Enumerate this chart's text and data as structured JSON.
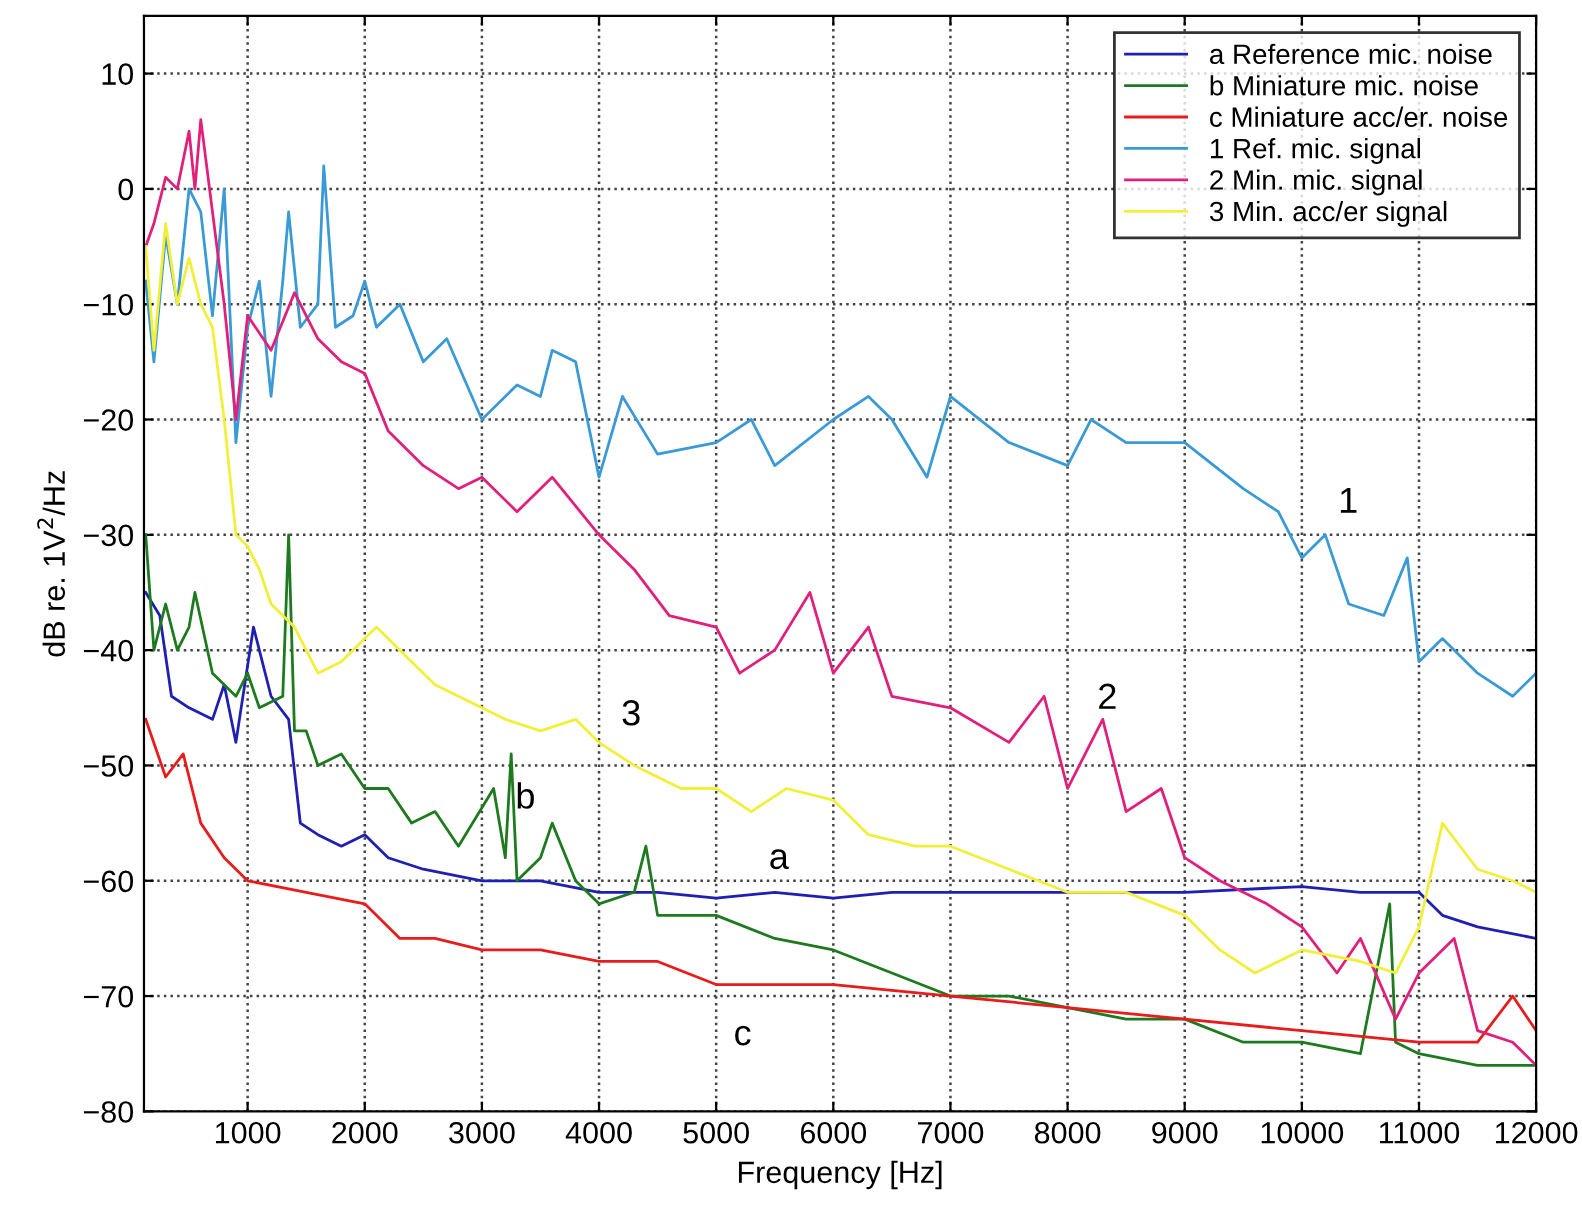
{
  "chart_data": {
    "type": "line",
    "xlabel": "Frequency [Hz]",
    "ylabel": "dB re. 1V$^{2}$/Hz",
    "xlim": [
      115,
      12000
    ],
    "ylim": [
      -80,
      15
    ],
    "xticks": [
      1000,
      2000,
      3000,
      4000,
      5000,
      6000,
      7000,
      8000,
      9000,
      10000,
      11000,
      12000
    ],
    "yticks": [
      -80,
      -70,
      -60,
      -50,
      -40,
      -30,
      -20,
      -10,
      0,
      10
    ],
    "grid": true,
    "legend": "top right",
    "marker": "none",
    "series": [
      {
        "name": "a Reference mic. noise",
        "color": "#1f1fb0",
        "x": [
          130,
          250,
          350,
          500,
          700,
          800,
          900,
          1050,
          1200,
          1350,
          1450,
          1600,
          1800,
          2000,
          2200,
          2500,
          3000,
          3500,
          4000,
          4500,
          5000,
          5500,
          6000,
          6500,
          7000,
          8000,
          9000,
          10000,
          10500,
          11000,
          11200,
          11500,
          12000
        ],
        "values": [
          -35,
          -37,
          -44,
          -45,
          -46,
          -43,
          -48,
          -38,
          -44,
          -46,
          -55,
          -56,
          -57,
          -56,
          -58,
          -59,
          -60,
          -60,
          -61,
          -61,
          -61.5,
          -61,
          -61.5,
          -61,
          -61,
          -61,
          -61,
          -60.5,
          -61,
          -61,
          -63,
          -64,
          -65
        ]
      },
      {
        "name": "b Miniature mic. noise",
        "color": "#1e7a1e",
        "x": [
          130,
          200,
          300,
          400,
          500,
          550,
          700,
          900,
          1000,
          1100,
          1300,
          1350,
          1400,
          1500,
          1600,
          1800,
          2000,
          2200,
          2400,
          2600,
          2800,
          3100,
          3200,
          3250,
          3300,
          3500,
          3600,
          3800,
          4000,
          4300,
          4400,
          4500,
          5000,
          5500,
          6000,
          6500,
          7000,
          7500,
          8000,
          8500,
          9000,
          9500,
          10000,
          10500,
          10750,
          10800,
          11000,
          11500,
          12000
        ],
        "values": [
          -30,
          -40,
          -36,
          -40,
          -38,
          -35,
          -42,
          -44,
          -42,
          -45,
          -44,
          -30,
          -47,
          -47,
          -50,
          -49,
          -52,
          -52,
          -55,
          -54,
          -57,
          -52,
          -58,
          -49,
          -60,
          -58,
          -55,
          -60,
          -62,
          -61,
          -57,
          -63,
          -63,
          -65,
          -66,
          -68,
          -70,
          -70,
          -71,
          -72,
          -72,
          -74,
          -74,
          -75,
          -62,
          -74,
          -75,
          -76,
          -76
        ]
      },
      {
        "name": "c Miniature acc/er. noise",
        "color": "#e81c1c",
        "x": [
          130,
          300,
          450,
          600,
          800,
          1000,
          1500,
          2000,
          2300,
          2600,
          3000,
          3500,
          4000,
          4500,
          5000,
          5500,
          6000,
          7000,
          8000,
          9000,
          10000,
          11000,
          11500,
          11800,
          12000
        ],
        "values": [
          -46,
          -51,
          -49,
          -55,
          -58,
          -60,
          -61,
          -62,
          -65,
          -65,
          -66,
          -66,
          -67,
          -67,
          -69,
          -69,
          -69,
          -70,
          -71,
          -72,
          -73,
          -74,
          -74,
          -70,
          -73
        ]
      },
      {
        "name": "1 Ref. mic. signal",
        "color": "#3a9ad6",
        "x": [
          130,
          200,
          300,
          400,
          500,
          600,
          700,
          800,
          900,
          1000,
          1100,
          1200,
          1300,
          1350,
          1450,
          1600,
          1650,
          1750,
          1900,
          2000,
          2100,
          2300,
          2500,
          2700,
          3000,
          3300,
          3500,
          3600,
          3800,
          4000,
          4200,
          4500,
          5000,
          5300,
          5500,
          6000,
          6300,
          6500,
          6800,
          7000,
          7500,
          8000,
          8200,
          8500,
          9000,
          9500,
          9800,
          10000,
          10200,
          10400,
          10700,
          10900,
          11000,
          11200,
          11500,
          11800,
          12000
        ],
        "values": [
          -8,
          -15,
          -4,
          -10,
          0,
          -2,
          -11,
          0,
          -22,
          -12,
          -8,
          -18,
          -8,
          -2,
          -12,
          -10,
          2,
          -12,
          -11,
          -8,
          -12,
          -10,
          -15,
          -13,
          -20,
          -17,
          -18,
          -14,
          -15,
          -25,
          -18,
          -23,
          -22,
          -20,
          -24,
          -20,
          -18,
          -20,
          -25,
          -18,
          -22,
          -24,
          -20,
          -22,
          -22,
          -26,
          -28,
          -32,
          -30,
          -36,
          -37,
          -32,
          -41,
          -39,
          -42,
          -44,
          -42
        ]
      },
      {
        "name": "2 Min. mic. signal",
        "color": "#e0207a",
        "x": [
          130,
          200,
          300,
          400,
          500,
          550,
          600,
          700,
          800,
          900,
          1000,
          1200,
          1400,
          1600,
          1800,
          2000,
          2200,
          2500,
          2800,
          3000,
          3300,
          3600,
          4000,
          4300,
          4600,
          5000,
          5200,
          5500,
          5800,
          6000,
          6300,
          6500,
          7000,
          7500,
          7800,
          8000,
          8300,
          8500,
          8800,
          9000,
          9300,
          9700,
          10000,
          10300,
          10500,
          10800,
          11000,
          11300,
          11500,
          11800,
          12000
        ],
        "values": [
          -5,
          -3,
          1,
          0,
          5,
          0,
          6,
          -2,
          -10,
          -20,
          -11,
          -14,
          -9,
          -13,
          -15,
          -16,
          -21,
          -24,
          -26,
          -25,
          -28,
          -25,
          -30,
          -33,
          -37,
          -38,
          -42,
          -40,
          -35,
          -42,
          -38,
          -44,
          -45,
          -48,
          -44,
          -52,
          -46,
          -54,
          -52,
          -58,
          -60,
          -62,
          -64,
          -68,
          -65,
          -72,
          -68,
          -65,
          -73,
          -74,
          -76
        ]
      },
      {
        "name": "3 Min. acc/er signal",
        "color": "#f2ef3a",
        "x": [
          130,
          200,
          300,
          400,
          500,
          600,
          700,
          800,
          900,
          1000,
          1100,
          1200,
          1400,
          1600,
          1800,
          2000,
          2100,
          2300,
          2600,
          3000,
          3200,
          3500,
          3800,
          4000,
          4300,
          4700,
          5000,
          5300,
          5600,
          6000,
          6300,
          6700,
          7000,
          7500,
          8000,
          8500,
          9000,
          9300,
          9600,
          10000,
          10500,
          10800,
          11000,
          11200,
          11500,
          11800,
          12000
        ],
        "values": [
          -5,
          -14,
          -3,
          -10,
          -6,
          -10,
          -12,
          -20,
          -30,
          -31,
          -33,
          -36,
          -38,
          -42,
          -41,
          -39,
          -38,
          -40,
          -43,
          -45,
          -46,
          -47,
          -46,
          -48,
          -50,
          -52,
          -52,
          -54,
          -52,
          -53,
          -56,
          -57,
          -57,
          -59,
          -61,
          -61,
          -63,
          -66,
          -68,
          -66,
          -67,
          -68,
          -64,
          -55,
          -59,
          -60,
          -61
        ]
      }
    ],
    "annotations": [
      "1",
      "2",
      "3",
      "a",
      "b",
      "c"
    ]
  }
}
